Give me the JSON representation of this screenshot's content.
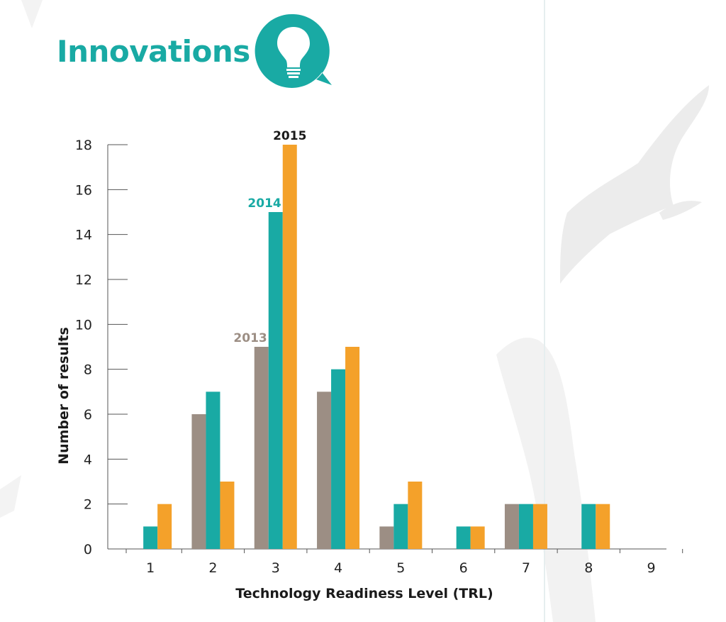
{
  "header": {
    "title": "Innovations",
    "icon": "lightbulb-speech-bubble-icon",
    "accent_color": "#19aaa4"
  },
  "background": {
    "decorations": [
      "bird-silhouette-icon",
      "bird-silhouette-icon"
    ]
  },
  "chart_data": {
    "type": "bar",
    "xlabel": "Technology Readiness Level (TRL)",
    "ylabel": "Number of results",
    "categories": [
      "1",
      "2",
      "3",
      "4",
      "5",
      "6",
      "7",
      "8",
      "9"
    ],
    "yticks": [
      0,
      2,
      4,
      6,
      8,
      10,
      12,
      14,
      16,
      18
    ],
    "ylim": [
      0,
      18
    ],
    "grid": false,
    "legend": "inline labels above TRL 3 bars",
    "series": [
      {
        "name": "2013",
        "color": "#9c8e84",
        "values": [
          0,
          6,
          9,
          7,
          1,
          0,
          2,
          0,
          0
        ]
      },
      {
        "name": "2014",
        "color": "#19aaa4",
        "values": [
          1,
          7,
          15,
          8,
          2,
          1,
          2,
          2,
          0
        ]
      },
      {
        "name": "2015",
        "color": "#f4a12a",
        "values": [
          2,
          3,
          18,
          9,
          3,
          1,
          2,
          2,
          0
        ]
      }
    ],
    "series_label_colors": [
      "#9c8e84",
      "#19aaa4",
      "#1a1a1a"
    ]
  }
}
